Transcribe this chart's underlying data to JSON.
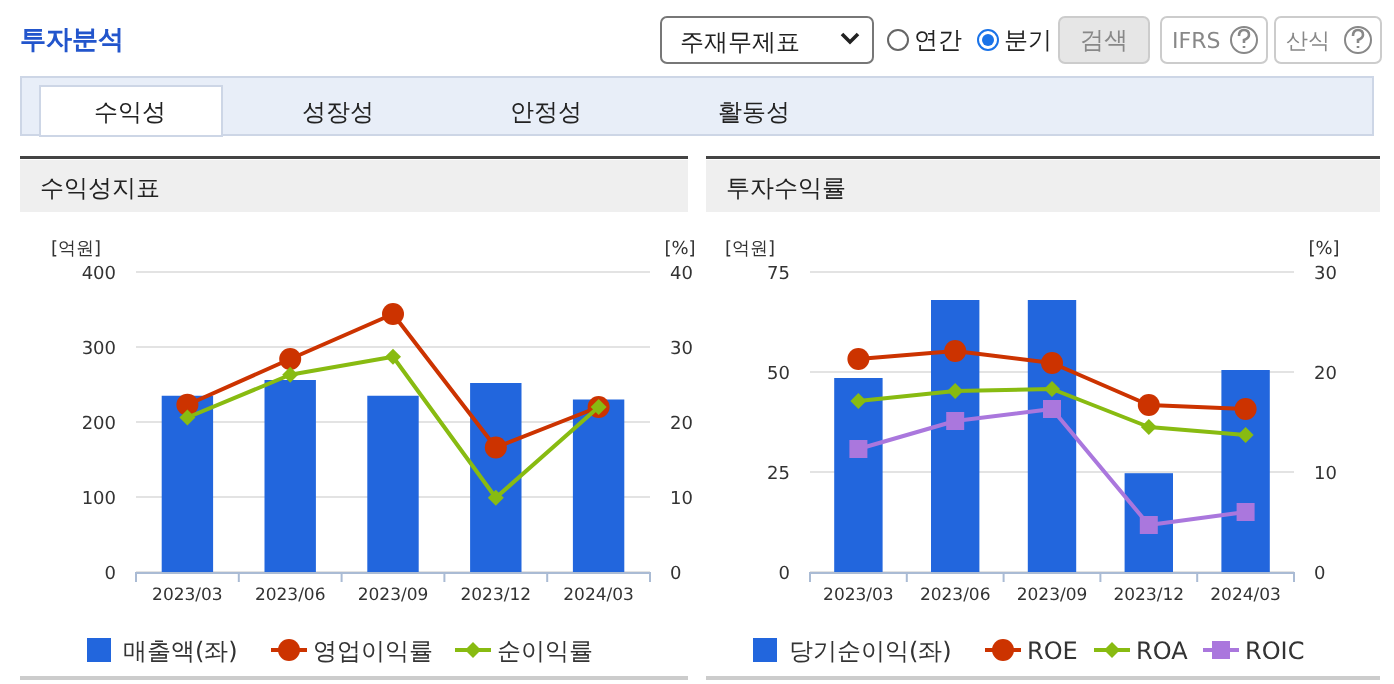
{
  "chart_data": [
    {
      "type": "other",
      "title": "투자분석",
      "annotations": [
        "주재무제표",
        "연간",
        "분기",
        "검색",
        "IFRS",
        "산식",
        "수익성",
        "성장성",
        "안정성",
        "활동성"
      ]
    },
    {
      "type": "bar",
      "title": "수익성지표",
      "categories": [
        "2023/03",
        "2023/06",
        "2023/09",
        "2023/12",
        "2024/03"
      ],
      "ylabel": "[억원]",
      "y2label": "[%]",
      "ylim": [
        0,
        400
      ],
      "yticks": [
        0,
        100,
        200,
        300,
        400
      ],
      "y2lim": [
        0,
        40
      ],
      "y2ticks": [
        0,
        10,
        20,
        30,
        40
      ],
      "grid": "y",
      "legend": "bottom",
      "series": [
        {
          "name": "매출액(좌)",
          "type": "bar",
          "color": "#2266dd",
          "values": [
            235,
            256,
            235,
            252,
            230
          ]
        },
        {
          "name": "영업이익률",
          "type": "line",
          "axis": "y2",
          "marker": "circle",
          "color": "#cc3300",
          "values": [
            22.3,
            28.4,
            34.4,
            16.6,
            22.0
          ]
        },
        {
          "name": "순이익률",
          "type": "line",
          "axis": "y2",
          "marker": "diamond",
          "color": "#88bb11",
          "values": [
            20.6,
            26.3,
            28.7,
            9.9,
            22.0
          ]
        }
      ]
    },
    {
      "type": "bar",
      "title": "투자수익률",
      "categories": [
        "2023/03",
        "2023/06",
        "2023/09",
        "2023/12",
        "2024/03"
      ],
      "ylabel": "[억원]",
      "y2label": "[%]",
      "ylim": [
        0,
        75
      ],
      "yticks": [
        0,
        25,
        50,
        75
      ],
      "y2lim": [
        0,
        30
      ],
      "y2ticks": [
        0,
        10,
        20,
        30
      ],
      "grid": "y",
      "legend": "bottom",
      "series": [
        {
          "name": "당기순이익(좌)",
          "type": "bar",
          "color": "#2266dd",
          "values": [
            48.5,
            68,
            68,
            24.7,
            50.5
          ]
        },
        {
          "name": "ROE",
          "type": "line",
          "axis": "y2",
          "marker": "circle",
          "color": "#cc3300",
          "values": [
            21.3,
            22.1,
            20.9,
            16.7,
            16.3
          ]
        },
        {
          "name": "ROA",
          "type": "line",
          "axis": "y2",
          "marker": "diamond",
          "color": "#88bb11",
          "values": [
            17.1,
            18.1,
            18.3,
            14.5,
            13.7
          ]
        },
        {
          "name": "ROIC",
          "type": "line",
          "axis": "y2",
          "marker": "square",
          "color": "#aa77dd",
          "values": [
            12.3,
            15.1,
            16.3,
            4.7,
            6.0
          ]
        }
      ]
    }
  ]
}
